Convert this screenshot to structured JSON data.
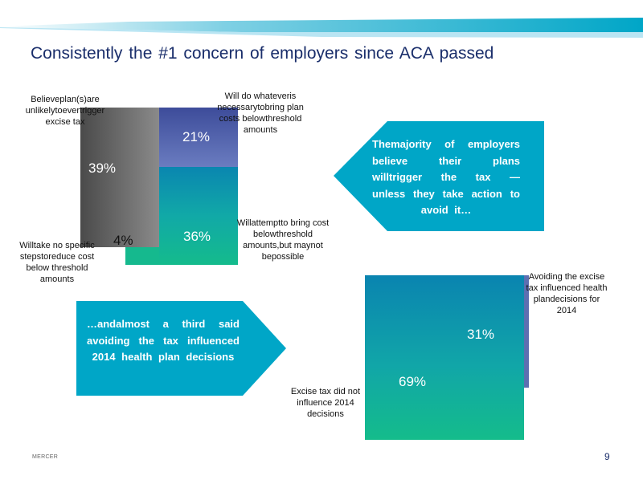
{
  "title": "Consistently the #1 concern of employers since ACA passed",
  "chart1": {
    "segments": [
      {
        "label": "Believeplan(s)are unlikelytoevertrigger excise tax",
        "pct": "39%"
      },
      {
        "label": "Will do whateveris necessarytobring plan costs belowthreshold amounts",
        "pct": "21%"
      },
      {
        "label": "Willattemptto bring cost belowthreshold amounts,but maynot bepossible",
        "pct": "36%"
      },
      {
        "label": "Willtake no specific stepstoreduce cost below threshold amounts",
        "pct": "4%"
      }
    ]
  },
  "callout1": "Themajority of employers believe their plans willtrigger the tax — unless they take action to avoid it…",
  "callout2": "…andalmost a third said avoiding the tax influenced 2014 health plan decisions",
  "chart2": {
    "segments": [
      {
        "label": "Avoiding the excise tax influenced health plandecisions for 2014",
        "pct": "31%"
      },
      {
        "label": "Excise tax did not influence 2014 decisions",
        "pct": "69%"
      }
    ]
  },
  "footer": {
    "brand": "MERCER",
    "page": "9"
  },
  "colors": {
    "title": "#1a2e6b",
    "teal": "#00a6c7",
    "purple": "#5d6fb1",
    "green": "#10b890",
    "gray": "#777777"
  }
}
